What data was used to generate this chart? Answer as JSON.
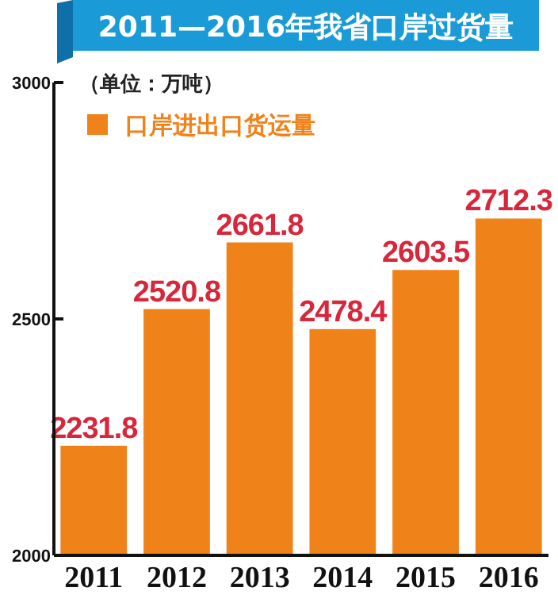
{
  "chart_data": {
    "type": "bar",
    "title": "2011—2016年我省口岸过货量",
    "annotations": [
      "（单位：万吨）"
    ],
    "categories": [
      "2011",
      "2012",
      "2013",
      "2014",
      "2015",
      "2016"
    ],
    "series": [
      {
        "name": "口岸进出口货运量",
        "color": "#f0821a",
        "values": [
          2231.8,
          2520.8,
          2661.8,
          2478.4,
          2603.5,
          2712.3
        ]
      }
    ],
    "ylim": [
      2000,
      3000
    ],
    "yticks": [
      2000,
      2500,
      3000
    ],
    "data_labels": true,
    "legend": "top left",
    "grid": false
  }
}
